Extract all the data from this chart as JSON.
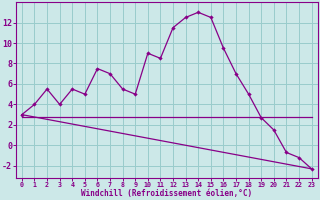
{
  "xlabel": "Windchill (Refroidissement éolien,°C)",
  "background_color": "#cce8e8",
  "line_color": "#880088",
  "grid_color": "#99cccc",
  "xlim": [
    -0.5,
    23.5
  ],
  "ylim": [
    -3.2,
    14.0
  ],
  "xticks": [
    0,
    1,
    2,
    3,
    4,
    5,
    6,
    7,
    8,
    9,
    10,
    11,
    12,
    13,
    14,
    15,
    16,
    17,
    18,
    19,
    20,
    21,
    22,
    23
  ],
  "yticks": [
    -2,
    0,
    2,
    4,
    6,
    8,
    10,
    12
  ],
  "line1_x": [
    0,
    1,
    2,
    3,
    4,
    5,
    6,
    7,
    8,
    9,
    10,
    11,
    12,
    13,
    14,
    15,
    16,
    17,
    18,
    19,
    20,
    21,
    22,
    23
  ],
  "line1_y": [
    3.0,
    4.0,
    5.5,
    4.0,
    5.5,
    5.0,
    7.5,
    7.0,
    5.5,
    5.0,
    9.0,
    8.5,
    11.5,
    12.5,
    13.0,
    12.5,
    9.5,
    7.0,
    5.0,
    2.7,
    1.5,
    -0.7,
    -1.2,
    -2.3
  ],
  "line2_x": [
    0,
    23
  ],
  "line2_y": [
    2.8,
    2.8
  ],
  "line3_x": [
    0,
    23
  ],
  "line3_y": [
    3.0,
    -2.3
  ],
  "xlabel_fontsize": 5.5,
  "ytick_fontsize": 6.0,
  "xtick_fontsize": 4.8
}
